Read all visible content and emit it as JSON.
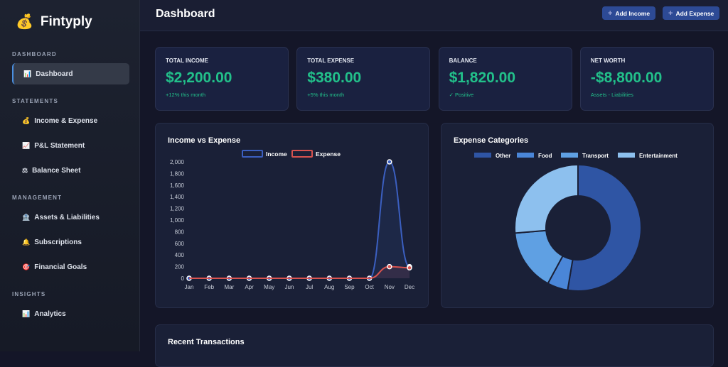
{
  "app": {
    "name": "Fintyply",
    "logo_icon": "money-bag-icon"
  },
  "sidebar": {
    "sections": [
      {
        "label": "DASHBOARD",
        "items": [
          {
            "label": "Dashboard",
            "icon": "📊",
            "active": true
          }
        ]
      },
      {
        "label": "STATEMENTS",
        "items": [
          {
            "label": "Income & Expense",
            "icon": "💰"
          },
          {
            "label": "P&L Statement",
            "icon": "📈"
          },
          {
            "label": "Balance Sheet",
            "icon": "⚖"
          }
        ]
      },
      {
        "label": "MANAGEMENT",
        "items": [
          {
            "label": "Assets & Liabilities",
            "icon": "🏦"
          },
          {
            "label": "Subscriptions",
            "icon": "🔔"
          },
          {
            "label": "Financial Goals",
            "icon": "🎯"
          }
        ]
      },
      {
        "label": "INSIGHTS",
        "items": [
          {
            "label": "Analytics",
            "icon": "📊"
          }
        ]
      }
    ]
  },
  "header": {
    "title": "Dashboard",
    "add_income": "Add Income",
    "add_expense": "Add Expense"
  },
  "cards": [
    {
      "label": "TOTAL INCOME",
      "value": "$2,200.00",
      "sub": "+12% this month"
    },
    {
      "label": "TOTAL EXPENSE",
      "value": "$380.00",
      "sub": "+5% this month"
    },
    {
      "label": "BALANCE",
      "value": "$1,820.00",
      "sub": "✓ Positive"
    },
    {
      "label": "NET WORTH",
      "value": "-$8,800.00",
      "sub": "Assets - Liabilities"
    }
  ],
  "recent": {
    "title": "Recent Transactions"
  },
  "chart_data": [
    {
      "type": "line",
      "title": "Income vs Expense",
      "categories": [
        "Jan",
        "Feb",
        "Mar",
        "Apr",
        "May",
        "Jun",
        "Jul",
        "Aug",
        "Sep",
        "Oct",
        "Nov",
        "Dec"
      ],
      "ylim": [
        0,
        2000
      ],
      "yticks": [
        "0",
        "200",
        "400",
        "600",
        "800",
        "1,000",
        "1,200",
        "1,400",
        "1,600",
        "1,800",
        "2,000"
      ],
      "legend": "top",
      "series": [
        {
          "name": "Income",
          "color": "#3b5fc0",
          "values": [
            0,
            0,
            0,
            0,
            0,
            0,
            0,
            0,
            0,
            0,
            2000,
            200
          ]
        },
        {
          "name": "Expense",
          "color": "#d9534f",
          "values": [
            0,
            0,
            0,
            0,
            0,
            0,
            0,
            0,
            0,
            0,
            200,
            180
          ]
        }
      ]
    },
    {
      "type": "pie",
      "title": "Expense Categories",
      "legend": "top",
      "labels": [
        "Other",
        "Food",
        "Transport",
        "Entertainment"
      ],
      "values": [
        200,
        20,
        60,
        100
      ],
      "colors": [
        "#2f55a4",
        "#4a86d8",
        "#5fa0e3",
        "#8dc0ee"
      ]
    }
  ]
}
